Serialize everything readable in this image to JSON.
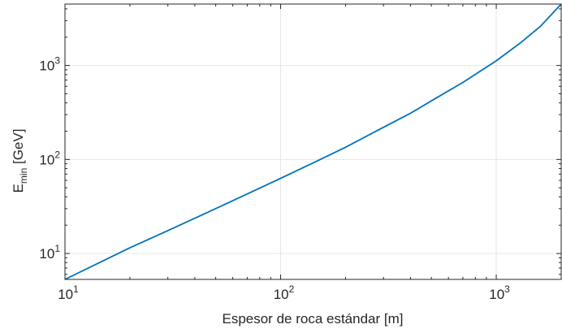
{
  "chart_data": {
    "type": "line",
    "title": "",
    "xlabel": "Espesor de roca estándar [m]",
    "ylabel": {
      "main": "E",
      "sub": "min",
      "rest": " [GeV]"
    },
    "xscale": "log",
    "yscale": "log",
    "xlim": [
      10,
      2000
    ],
    "ylim": [
      5.3,
      4500
    ],
    "grid": true,
    "xticks": [
      {
        "value": 10,
        "base": "10",
        "exp": "1"
      },
      {
        "value": 100,
        "base": "10",
        "exp": "2"
      },
      {
        "value": 1000,
        "base": "10",
        "exp": "3"
      }
    ],
    "yticks": [
      {
        "value": 10,
        "base": "10",
        "exp": "1"
      },
      {
        "value": 100,
        "base": "10",
        "exp": "2"
      },
      {
        "value": 1000,
        "base": "10",
        "exp": "3"
      }
    ],
    "series": [
      {
        "color": "#0072BD",
        "x": [
          10,
          20,
          30,
          50,
          70,
          100,
          150,
          200,
          300,
          400,
          500,
          700,
          1000,
          1300,
          1600,
          2000
        ],
        "y": [
          5.3,
          11.5,
          17.5,
          30,
          43,
          63,
          98,
          135,
          220,
          310,
          420,
          660,
          1120,
          1750,
          2600,
          4500
        ]
      }
    ],
    "colors": {
      "line": "#0072BD",
      "axis": "#262626",
      "grid": "#e6e6e6"
    }
  }
}
